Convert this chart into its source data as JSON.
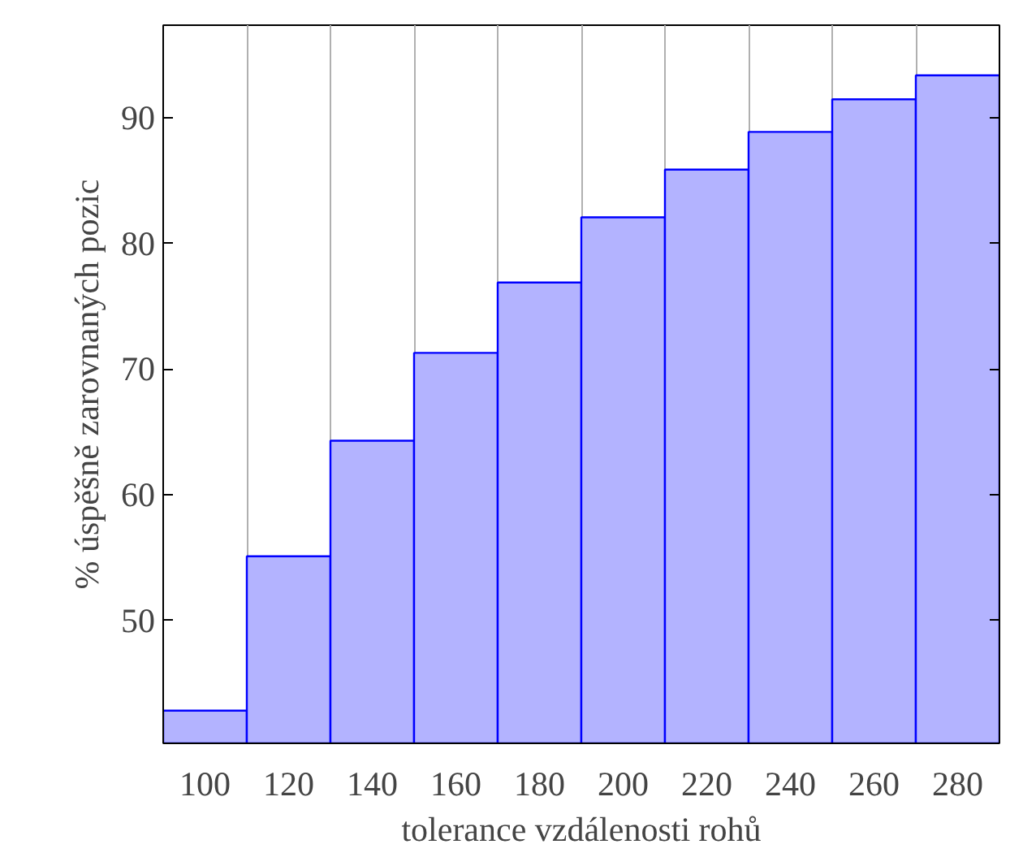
{
  "chart_data": {
    "type": "bar",
    "xlabel": "tolerance vzdálenosti rohů",
    "ylabel": "% úspěšně zarovnaných pozic",
    "categories": [
      "100",
      "120",
      "140",
      "160",
      "180",
      "200",
      "220",
      "240",
      "260",
      "280"
    ],
    "values": [
      42.8,
      55.1,
      64.3,
      71.3,
      76.9,
      82.1,
      85.9,
      88.9,
      91.5,
      93.4
    ],
    "color": "#b3b3ff",
    "ylim": [
      40.2,
      97.4
    ],
    "yticks": [
      50,
      60,
      70,
      80,
      90
    ],
    "grid": "x"
  }
}
